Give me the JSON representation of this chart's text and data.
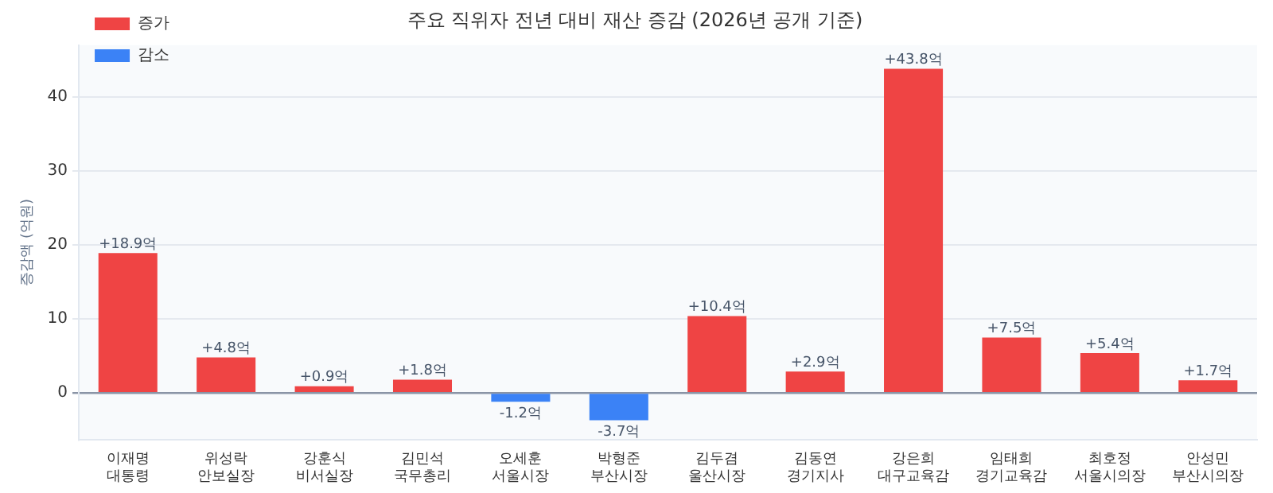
{
  "chart_data": {
    "type": "bar",
    "title": "주요 직위자 전년 대비 재산 증감 (2026년 공개 기준)",
    "ylabel": "증감액 (억원)",
    "categories": [
      "이재명\n대통령",
      "위성락\n안보실장",
      "강훈식\n비서실장",
      "김민석\n국무총리",
      "오세훈\n서울시장",
      "박형준\n부산시장",
      "김두겸\n울산시장",
      "김동연\n경기지사",
      "강은희\n대구교육감",
      "임태희\n경기교육감",
      "최호정\n서울시의장",
      "안성민\n부산시의장"
    ],
    "series": [
      {
        "name": "증가",
        "color": "#ef4444",
        "values": [
          18.9,
          4.8,
          0.9,
          1.8,
          null,
          null,
          10.4,
          2.9,
          43.8,
          7.5,
          5.4,
          1.7
        ],
        "value_labels": [
          "+18.9억",
          "+4.8억",
          "+0.9억",
          "+1.8억",
          null,
          null,
          "+10.4억",
          "+2.9억",
          "+43.8억",
          "+7.5억",
          "+5.4억",
          "+1.7억"
        ]
      },
      {
        "name": "감소",
        "color": "#3b82f6",
        "values": [
          null,
          null,
          null,
          null,
          -1.2,
          -3.7,
          null,
          null,
          null,
          null,
          null,
          null
        ],
        "value_labels": [
          null,
          null,
          null,
          null,
          "-1.2억",
          "-3.7억",
          null,
          null,
          null,
          null,
          null,
          null
        ]
      }
    ],
    "ylim": [
      -6.3,
      47
    ],
    "yticks": [
      0,
      10,
      20,
      30,
      40
    ],
    "grid": "y",
    "legend": "top left"
  }
}
